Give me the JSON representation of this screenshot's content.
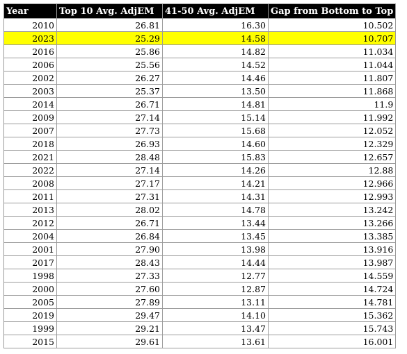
{
  "headers": [
    "Year",
    "Top 10 Avg. AdjEM",
    "41-50 Avg. AdjEM",
    "Gap from Bottom to Top"
  ],
  "highlight_color": "#ffff00",
  "rows": [
    {
      "year": "2010",
      "top10": "26.81",
      "r41_50": "16.30",
      "gap": "10.502",
      "highlight": false
    },
    {
      "year": "2023",
      "top10": "25.29",
      "r41_50": "14.58",
      "gap": "10.707",
      "highlight": true
    },
    {
      "year": "2016",
      "top10": "25.86",
      "r41_50": "14.82",
      "gap": "11.034",
      "highlight": false
    },
    {
      "year": "2006",
      "top10": "25.56",
      "r41_50": "14.52",
      "gap": "11.044",
      "highlight": false
    },
    {
      "year": "2002",
      "top10": "26.27",
      "r41_50": "14.46",
      "gap": "11.807",
      "highlight": false
    },
    {
      "year": "2003",
      "top10": "25.37",
      "r41_50": "13.50",
      "gap": "11.868",
      "highlight": false
    },
    {
      "year": "2014",
      "top10": "26.71",
      "r41_50": "14.81",
      "gap": "11.9",
      "highlight": false
    },
    {
      "year": "2009",
      "top10": "27.14",
      "r41_50": "15.14",
      "gap": "11.992",
      "highlight": false
    },
    {
      "year": "2007",
      "top10": "27.73",
      "r41_50": "15.68",
      "gap": "12.052",
      "highlight": false
    },
    {
      "year": "2018",
      "top10": "26.93",
      "r41_50": "14.60",
      "gap": "12.329",
      "highlight": false
    },
    {
      "year": "2021",
      "top10": "28.48",
      "r41_50": "15.83",
      "gap": "12.657",
      "highlight": false
    },
    {
      "year": "2022",
      "top10": "27.14",
      "r41_50": "14.26",
      "gap": "12.88",
      "highlight": false
    },
    {
      "year": "2008",
      "top10": "27.17",
      "r41_50": "14.21",
      "gap": "12.966",
      "highlight": false
    },
    {
      "year": "2011",
      "top10": "27.31",
      "r41_50": "14.31",
      "gap": "12.993",
      "highlight": false
    },
    {
      "year": "2013",
      "top10": "28.02",
      "r41_50": "14.78",
      "gap": "13.242",
      "highlight": false
    },
    {
      "year": "2012",
      "top10": "26.71",
      "r41_50": "13.44",
      "gap": "13.266",
      "highlight": false
    },
    {
      "year": "2004",
      "top10": "26.84",
      "r41_50": "13.45",
      "gap": "13.385",
      "highlight": false
    },
    {
      "year": "2001",
      "top10": "27.90",
      "r41_50": "13.98",
      "gap": "13.916",
      "highlight": false
    },
    {
      "year": "2017",
      "top10": "28.43",
      "r41_50": "14.44",
      "gap": "13.987",
      "highlight": false
    },
    {
      "year": "1998",
      "top10": "27.33",
      "r41_50": "12.77",
      "gap": "14.559",
      "highlight": false
    },
    {
      "year": "2000",
      "top10": "27.60",
      "r41_50": "12.87",
      "gap": "14.724",
      "highlight": false
    },
    {
      "year": "2005",
      "top10": "27.89",
      "r41_50": "13.11",
      "gap": "14.781",
      "highlight": false
    },
    {
      "year": "2019",
      "top10": "29.47",
      "r41_50": "14.10",
      "gap": "15.362",
      "highlight": false
    },
    {
      "year": "1999",
      "top10": "29.21",
      "r41_50": "13.47",
      "gap": "15.743",
      "highlight": false
    },
    {
      "year": "2015",
      "top10": "29.61",
      "r41_50": "13.61",
      "gap": "16.001",
      "highlight": false
    }
  ]
}
